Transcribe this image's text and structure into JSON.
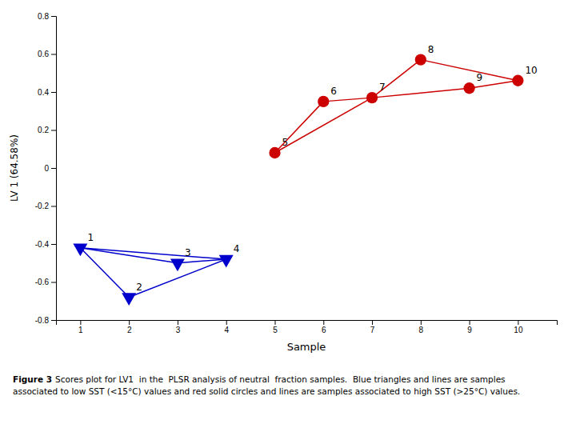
{
  "chart_data": {
    "type": "scatter",
    "xlabel": "Sample",
    "ylabel": "LV 1 (64.58%)",
    "xlim": [
      0.5,
      10.8
    ],
    "ylim": [
      -0.8,
      0.8
    ],
    "xticks": [
      1,
      2,
      3,
      4,
      5,
      6,
      7,
      8,
      9,
      10
    ],
    "yticks": [
      -0.8,
      -0.6,
      -0.4,
      -0.2,
      0,
      0.2,
      0.4,
      0.6,
      0.8
    ],
    "series": [
      {
        "x": [
          1,
          2,
          3,
          4
        ],
        "values": [
          -0.42,
          -0.68,
          -0.5,
          -0.48
        ],
        "color": "#0000CC",
        "marker": "triangle-down",
        "segments": [
          [
            0,
            1
          ],
          [
            0,
            2
          ],
          [
            0,
            3
          ],
          [
            2,
            3
          ],
          [
            1,
            3
          ]
        ]
      },
      {
        "x": [
          5,
          6,
          7,
          8,
          9,
          10
        ],
        "values": [
          0.08,
          0.35,
          0.37,
          0.57,
          0.42,
          0.46
        ],
        "color": "#CC0000",
        "marker": "circle",
        "segments": [
          [
            0,
            1
          ],
          [
            0,
            2
          ],
          [
            1,
            2
          ],
          [
            2,
            3
          ],
          [
            2,
            4
          ],
          [
            3,
            5
          ],
          [
            4,
            5
          ]
        ]
      }
    ],
    "caption_title": "Figure 3",
    "caption": [
      "Scores plot for LV1  in the  PLSR analysis of neutral  fraction samples.  Blue triangles and lines are samples",
      "associated to low SST (<15°C) values and red solid circles and lines are samples associated to high SST (>25°C) values."
    ]
  }
}
